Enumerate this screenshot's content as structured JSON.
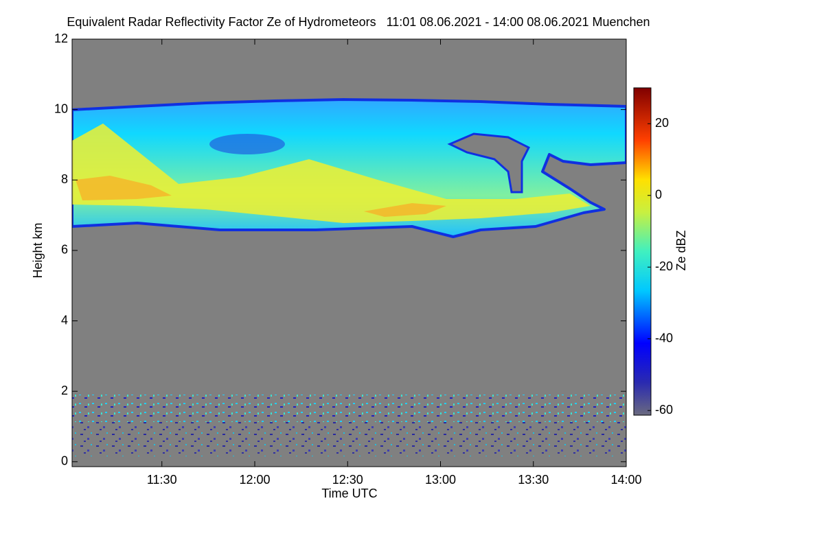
{
  "chart_data": {
    "type": "heatmap",
    "title": "Equivalent Radar Reflectivity Factor Ze of Hydrometeors   11:01 08.06.2021 - 14:00 08.06.2021 Muenchen",
    "x_label": "Time UTC",
    "y_label": "Height km",
    "xlim": [
      661,
      840
    ],
    "xticks": [
      {
        "value": 690,
        "label": "11:30"
      },
      {
        "value": 720,
        "label": "12:00"
      },
      {
        "value": 750,
        "label": "12:30"
      },
      {
        "value": 780,
        "label": "13:00"
      },
      {
        "value": 810,
        "label": "13:30"
      },
      {
        "value": 840,
        "label": "14:00"
      }
    ],
    "ylim": [
      -0.14,
      12
    ],
    "yticks": [
      0,
      2,
      4,
      6,
      8,
      10,
      12
    ],
    "colorbar": {
      "label": "Ze dBZ",
      "lim": [
        -61.3,
        30
      ],
      "ticks": [
        -60,
        -40,
        -20,
        0,
        20
      ]
    }
  }
}
